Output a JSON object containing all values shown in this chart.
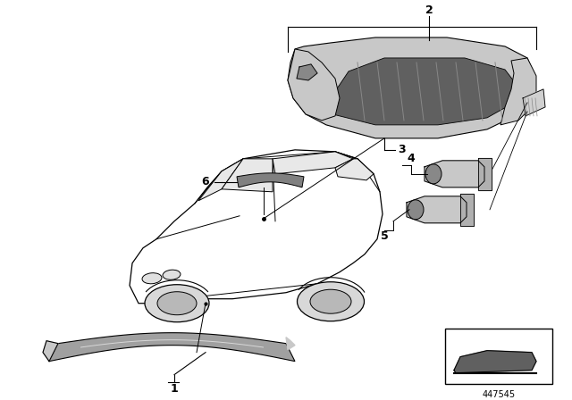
{
  "background_color": "#ffffff",
  "figure_width": 6.4,
  "figure_height": 4.48,
  "dpi": 100,
  "line_color": "#000000",
  "text_color": "#000000",
  "car_color": "#ffffff",
  "part_fill_light": "#c8c8c8",
  "part_fill_mid": "#a0a0a0",
  "part_fill_dark": "#606060",
  "label_fontsize": 8,
  "partid_fontsize": 7,
  "part_id_text": "447545"
}
